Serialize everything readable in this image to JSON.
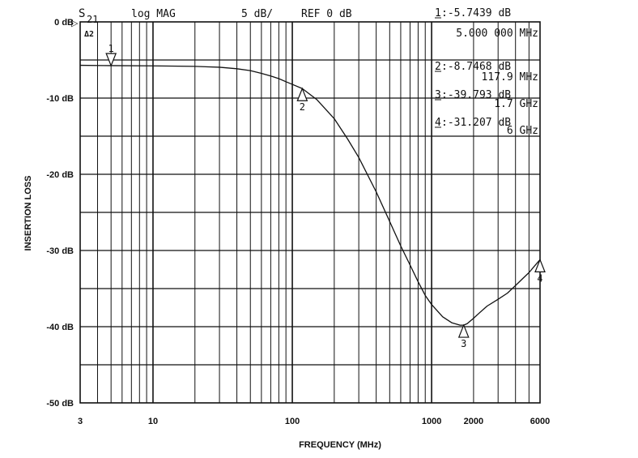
{
  "header": {
    "param_main": "S",
    "param_sub": "21",
    "format": "log MAG",
    "scale": "5 dB/",
    "reference": "REF 0 dB",
    "ref_marker_symbol": "▷"
  },
  "marker_readouts": [
    {
      "id": "1",
      "value": ":-5.7439 dB",
      "frequency": "5.000 000 MHz"
    },
    {
      "id": "2",
      "value": ":-8.7468 dB",
      "frequency": "117.9 MHz"
    },
    {
      "id": "3",
      "value": ":-39.793 dB",
      "frequency": "1.7 GHz"
    },
    {
      "id": "4",
      "value": ":-31.207 dB",
      "frequency": "6 GHz"
    }
  ],
  "active_marker_tag": "Δ2",
  "chart_data": {
    "type": "line",
    "xlabel": "FREQUENCY (MHz)",
    "ylabel": "INSERTION LOSS",
    "x_scale": "log",
    "xlim": [
      3,
      6000
    ],
    "ylim": [
      -50,
      0
    ],
    "x_ticks": [
      3,
      10,
      100,
      1000,
      2000,
      6000
    ],
    "x_tick_labels": [
      "3",
      "10",
      "100",
      "1000",
      "2000",
      "6000"
    ],
    "y_ticks": [
      0,
      -10,
      -20,
      -30,
      -40,
      -50
    ],
    "y_tick_labels": [
      "0 dB",
      "-10 dB",
      "-20 dB",
      "-30 dB",
      "-40 dB",
      "-50 dB"
    ],
    "grid": true,
    "series": [
      {
        "x": [
          3,
          5,
          10,
          20,
          30,
          40,
          50,
          60,
          70,
          80,
          90,
          100,
          117.9,
          150,
          200,
          250,
          300,
          400,
          500,
          600,
          700,
          800,
          900,
          1000,
          1200,
          1400,
          1600,
          1700,
          1800,
          2000,
          2200,
          2500,
          3000,
          3500,
          4000,
          4500,
          5000,
          5500,
          6000
        ],
        "y": [
          -5.7,
          -5.74,
          -5.77,
          -5.84,
          -5.95,
          -6.15,
          -6.4,
          -6.75,
          -7.1,
          -7.45,
          -7.85,
          -8.2,
          -8.75,
          -10.2,
          -12.7,
          -15.4,
          -17.8,
          -22.3,
          -26.2,
          -29.4,
          -31.9,
          -34.1,
          -35.9,
          -37.1,
          -38.7,
          -39.5,
          -39.8,
          -39.8,
          -39.6,
          -38.9,
          -38.2,
          -37.3,
          -36.4,
          -35.6,
          -34.6,
          -33.7,
          -32.9,
          -32.0,
          -31.2
        ]
      }
    ],
    "markers": [
      {
        "label": "1",
        "x": 5,
        "y": -5.7439,
        "style": "pointer-down",
        "label_position": "above"
      },
      {
        "label": "2",
        "x": 117.9,
        "y": -8.7468,
        "style": "pointer-up",
        "label_position": "below"
      },
      {
        "label": "3",
        "x": 1700,
        "y": -39.793,
        "style": "pointer-up",
        "label_position": "below"
      },
      {
        "label": "4",
        "x": 6000,
        "y": -31.207,
        "style": "pointer-up",
        "label_position": "below"
      }
    ]
  }
}
